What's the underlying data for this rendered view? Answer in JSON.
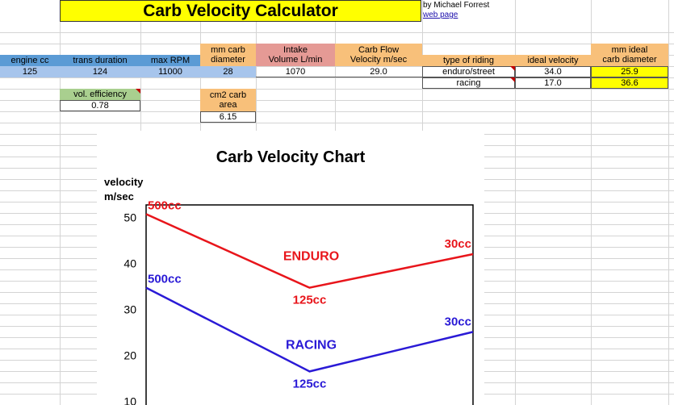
{
  "header": {
    "title": "Carb Velocity Calculator",
    "author": "by Michael Forrest",
    "link": "web page"
  },
  "table": {
    "engine_cc_label": "engine cc",
    "engine_cc": "125",
    "trans_duration_label": "trans duration",
    "trans_duration": "124",
    "max_rpm_label": "max RPM",
    "max_rpm": "11000",
    "mm_carb_label": "mm carb\ndiameter",
    "mm_carb": "28",
    "intake_label": "Intake\nVolume L/min",
    "intake": "1070",
    "flow_label": "Carb Flow\nVelocity m/sec",
    "flow": "29.0",
    "type_label": "type of riding",
    "type_1": "enduro/street",
    "type_2": "racing",
    "ideal_vel_label": "ideal velocity",
    "ideal_vel_1": "34.0",
    "ideal_vel_2": "17.0",
    "ideal_diam_label": "mm ideal\ncarb diameter",
    "ideal_diam_1": "25.9",
    "ideal_diam_2": "36.6",
    "vol_eff_label": "vol. efficiency",
    "vol_eff": "0.78",
    "cm2_label": "cm2 carb\narea",
    "cm2": "6.15"
  },
  "colors": {
    "enduro": "#e8151b",
    "racing": "#2a1ad6"
  },
  "chart_data": {
    "type": "line",
    "title": "Carb Velocity Chart",
    "ylabel": "velocity\nm/sec",
    "yticks": [
      50,
      40,
      30,
      20,
      10
    ],
    "ylim": [
      9,
      52.5
    ],
    "x": [
      "500cc",
      "125cc",
      "30cc"
    ],
    "series": [
      {
        "name": "ENDURO",
        "values": [
          50.5,
          34.5,
          41.8
        ],
        "point_labels": [
          "500cc",
          "125cc",
          "30cc"
        ]
      },
      {
        "name": "RACING",
        "values": [
          34.5,
          16.3,
          24.9
        ],
        "point_labels": [
          "500cc",
          "125cc",
          "30cc"
        ]
      }
    ],
    "grid": false
  }
}
